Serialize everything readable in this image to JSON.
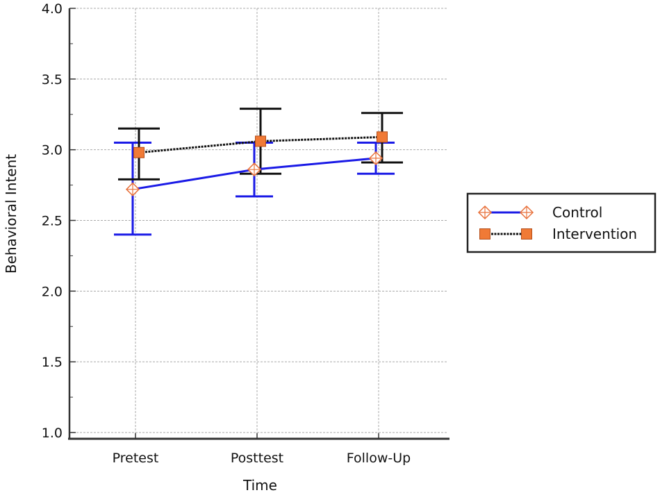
{
  "chart_data": {
    "type": "line",
    "title": "",
    "xlabel": "Time",
    "ylabel": "Behavioral Intent",
    "categories": [
      "Pretest",
      "Posttest",
      "Follow-Up"
    ],
    "ylim": [
      1.0,
      4.0
    ],
    "yticks": [
      "1.0",
      "1.5",
      "2.0",
      "2.5",
      "3.0",
      "3.5",
      "4.0"
    ],
    "grid": true,
    "legend_position": "right",
    "series": [
      {
        "name": "Control",
        "values": [
          2.72,
          2.86,
          2.94
        ],
        "error_low": [
          2.4,
          2.67,
          2.83
        ],
        "error_high": [
          3.05,
          3.05,
          3.05
        ],
        "line_color": "#1a1ae6",
        "marker": "diamond-plus",
        "marker_color": "#e8703a"
      },
      {
        "name": "Intervention",
        "values": [
          2.98,
          3.06,
          3.09
        ],
        "error_low": [
          2.79,
          2.83,
          2.91
        ],
        "error_high": [
          3.15,
          3.29,
          3.26
        ],
        "line_color": "#111111",
        "marker": "square",
        "marker_color": "#f07a36"
      }
    ]
  }
}
